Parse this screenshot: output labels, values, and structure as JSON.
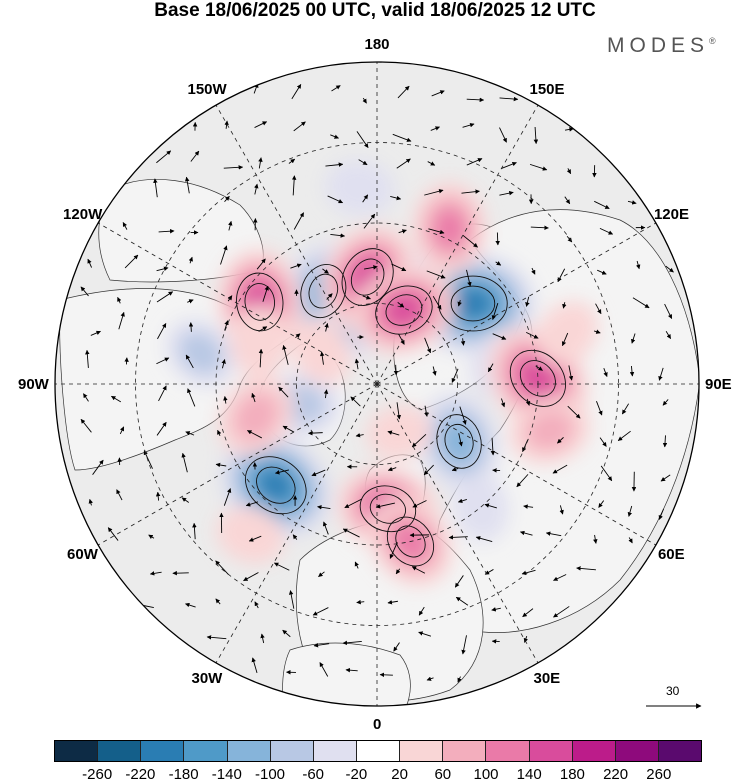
{
  "title": "Base 18/06/2025 00 UTC, valid 18/06/2025 12 UTC",
  "brand": "MODES",
  "brand_mark": "®",
  "longitude_labels": [
    "180",
    "150E",
    "120E",
    "90E",
    "60E",
    "30E",
    "0",
    "30W",
    "60W",
    "90W",
    "120W",
    "150W"
  ],
  "reference_vector": {
    "label": "30"
  },
  "colorbar": {
    "ticks": [
      "-260",
      "-220",
      "-180",
      "-140",
      "-100",
      "-60",
      "-20",
      "20",
      "60",
      "100",
      "140",
      "180",
      "220",
      "260"
    ],
    "colors": [
      "#0d2b45",
      "#145f8a",
      "#2a7db3",
      "#4f9ac8",
      "#86b4da",
      "#b8c8e4",
      "#e0e0f0",
      "#ffffff",
      "#f9d6d6",
      "#f3aebd",
      "#ea7aa8",
      "#d94c9c",
      "#bc1c8a",
      "#8e0a7c",
      "#5a0a6e"
    ]
  },
  "anomaly_blobs": [
    {
      "lat": 55,
      "lon": 130,
      "value": -230
    },
    {
      "lat": 50,
      "lon": -45,
      "value": -210
    },
    {
      "lat": 62,
      "lon": 55,
      "value": -150
    },
    {
      "lat": 60,
      "lon": -150,
      "value": -150
    },
    {
      "lat": 72,
      "lon": -165,
      "value": -100
    },
    {
      "lat": 68,
      "lon": -75,
      "value": -90
    },
    {
      "lat": 40,
      "lon": -100,
      "value": -80
    },
    {
      "lat": 45,
      "lon": 40,
      "value": -60
    },
    {
      "lat": 55,
      "lon": 100,
      "value": -70
    },
    {
      "lat": 60,
      "lon": 160,
      "value": -60
    },
    {
      "lat": 35,
      "lon": -175,
      "value": -60
    },
    {
      "lat": 45,
      "lon": 92,
      "value": 190
    },
    {
      "lat": 50,
      "lon": -125,
      "value": 170
    },
    {
      "lat": 60,
      "lon": -175,
      "value": 180
    },
    {
      "lat": 68,
      "lon": 160,
      "value": 170
    },
    {
      "lat": 55,
      "lon": 5,
      "value": 160
    },
    {
      "lat": 45,
      "lon": 12,
      "value": 140
    },
    {
      "lat": 42,
      "lon": 155,
      "value": 130
    },
    {
      "lat": 55,
      "lon": -75,
      "value": 110
    },
    {
      "lat": 40,
      "lon": 75,
      "value": 100
    },
    {
      "lat": 35,
      "lon": -40,
      "value": 60
    },
    {
      "lat": 72,
      "lon": -120,
      "value": 60
    },
    {
      "lat": 55,
      "lon": -110,
      "value": 70
    },
    {
      "lat": 35,
      "lon": 105,
      "value": 60
    },
    {
      "lat": 75,
      "lon": 25,
      "value": 50
    }
  ]
}
